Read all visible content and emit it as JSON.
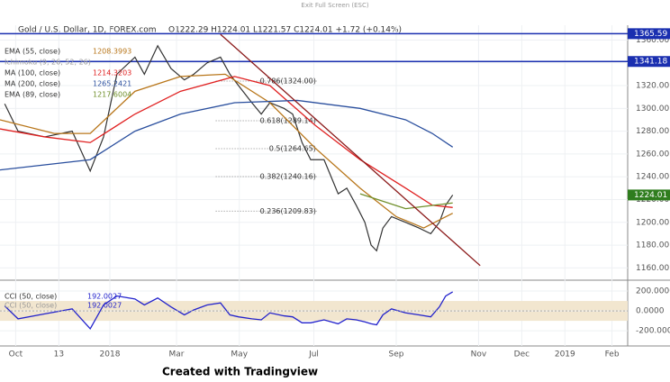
{
  "screen_hint": "Exit Full Screen (ESC)",
  "caption": "Created with Tradingview",
  "chart_data": [
    {
      "type": "line",
      "title": "Gold / U.S. Dollar, 1D, FOREX.com",
      "subtitle": "O1222.29 H1224.01 L1221.57 C1224.01 +1.72 (+0.14%)",
      "xlim": [
        0,
        80
      ],
      "xticks": [
        {
          "value": 2,
          "label": "Oct"
        },
        {
          "value": 7.5,
          "label": "13"
        },
        {
          "value": 14,
          "label": "2018"
        },
        {
          "value": 22.5,
          "label": "Mar"
        },
        {
          "value": 30.5,
          "label": "May"
        },
        {
          "value": 40,
          "label": "Jul"
        },
        {
          "value": 50.5,
          "label": "Sep"
        },
        {
          "value": 61,
          "label": "Nov"
        },
        {
          "value": 66.5,
          "label": "Dec"
        },
        {
          "value": 72,
          "label": "2019"
        },
        {
          "value": 78,
          "label": "Feb"
        }
      ],
      "ylim": [
        1150,
        1373
      ],
      "yticks": [
        {
          "value": 1160,
          "label": "1160.00"
        },
        {
          "value": 1180,
          "label": "1180.00"
        },
        {
          "value": 1200,
          "label": "1200.00"
        },
        {
          "value": 1220,
          "label": "1220.00"
        },
        {
          "value": 1240,
          "label": "1240.00"
        },
        {
          "value": 1260,
          "label": "1260.00"
        },
        {
          "value": 1280,
          "label": "1280.00"
        },
        {
          "value": 1300,
          "label": "1300.00"
        },
        {
          "value": 1320,
          "label": "1320.00"
        },
        {
          "value": 1340,
          "label": "1340.00"
        },
        {
          "value": 1360,
          "label": "1360.00"
        }
      ],
      "series": [
        {
          "color": "#333333",
          "x": [
            0.6,
            2.3,
            5.7,
            9.2,
            11.5,
            13.2,
            14.9,
            17.2,
            18.4,
            20.1,
            21.8,
            23.5,
            24.7,
            26.4,
            28.1,
            29.3,
            30.4,
            32.1,
            33.3,
            34.4,
            36.2,
            37.3,
            38.5,
            39.6,
            41.3,
            43.1,
            44.2,
            45.4,
            46.5,
            47.3,
            48.0,
            48.8,
            49.9,
            51.7,
            53.4,
            54.9,
            56.0,
            56.8,
            57.7
          ],
          "values": [
            1304,
            1280,
            1275,
            1280,
            1245,
            1275,
            1330,
            1345,
            1330,
            1355,
            1335,
            1325,
            1330,
            1340,
            1345,
            1330,
            1320,
            1305,
            1295,
            1305,
            1300,
            1295,
            1270,
            1255,
            1255,
            1225,
            1230,
            1215,
            1200,
            1180,
            1175,
            1195,
            1205,
            1200,
            1195,
            1190,
            1200,
            1215,
            1224.01
          ]
        },
        {
          "name": "EMA (55, close)",
          "color": "#b8761a",
          "legend_value": 1208.3993,
          "x": [
            0,
            6.9,
            11.5,
            17.2,
            23,
            28.7,
            34.4,
            40.2,
            45.9,
            50.5,
            54,
            57.7
          ],
          "values": [
            1290,
            1278,
            1278,
            1315,
            1328,
            1330,
            1305,
            1265,
            1230,
            1205,
            1195,
            1208
          ]
        },
        {
          "name": "Ichimoku (9, 26, 52, 26)",
          "color": "#999999",
          "x": [],
          "values": []
        },
        {
          "name": "MA (100, close)",
          "color": "#e02020",
          "legend_value": 1214.3203,
          "x": [
            0,
            5.7,
            11.5,
            17.2,
            23,
            29.9,
            34.4,
            40.2,
            45.9,
            51.7,
            55.1,
            57.7
          ],
          "values": [
            1282,
            1275,
            1270,
            1295,
            1315,
            1328,
            1320,
            1285,
            1255,
            1230,
            1215,
            1213
          ]
        },
        {
          "name": "MA (200, close)",
          "color": "#2a4f9e",
          "legend_value": 1265.2421,
          "x": [
            0,
            11.5,
            17.2,
            23,
            29.9,
            37.9,
            45.9,
            51.7,
            55.1,
            57.7
          ],
          "values": [
            1246,
            1255,
            1280,
            1295,
            1305,
            1307,
            1300,
            1290,
            1278,
            1266
          ]
        },
        {
          "name": "EMA (89, close)",
          "color": "#6f8f2a",
          "legend_value": 1217.6004,
          "x": [
            45.9,
            51.7,
            57.7
          ],
          "values": [
            1225,
            1212,
            1217
          ]
        }
      ],
      "price_lines": [
        {
          "value": 1365.59,
          "label": "1365.59",
          "color": "#1a2fb0"
        },
        {
          "value": 1341.18,
          "label": "1341.18",
          "color": "#1a2fb0"
        }
      ],
      "last_price": {
        "value": 1224.01,
        "label": "1224.01",
        "color": "#2f7d1e"
      },
      "trendline": {
        "color": "#8b1a1a",
        "x": [
          28.1,
          61.2
        ],
        "values": [
          1365,
          1162
        ]
      },
      "fib_x": [
        27.5,
        40.5
      ],
      "fib_levels": [
        {
          "value": 1324.0,
          "label": "0.786(1324.00)"
        },
        {
          "value": 1289.14,
          "label": "0.618(1289.14)"
        },
        {
          "value": 1264.65,
          "label": "0.5(1264.65)"
        },
        {
          "value": 1240.16,
          "label": "0.382(1240.16)"
        },
        {
          "value": 1209.83,
          "label": "0.236(1209.83)"
        }
      ]
    },
    {
      "type": "line",
      "ylim": [
        -335,
        300
      ],
      "yticks": [
        {
          "value": 200,
          "label": "200.0000"
        },
        {
          "value": 0,
          "label": "0.0000"
        },
        {
          "value": -200,
          "label": "-200.0000"
        }
      ],
      "band": [
        -100,
        100
      ],
      "series": [
        {
          "name": "CCI (50, close)",
          "color": "#2222cc",
          "legend_value": 192.0027,
          "x": [
            0.6,
            2.3,
            5.7,
            9.2,
            11.5,
            13.2,
            14.9,
            17.2,
            18.4,
            20.1,
            21.8,
            23.5,
            24.7,
            26.4,
            28.1,
            29.3,
            30.4,
            32.1,
            33.3,
            34.4,
            36.2,
            37.3,
            38.5,
            39.6,
            41.3,
            43.1,
            44.2,
            45.4,
            46.5,
            47.3,
            48.0,
            48.8,
            49.9,
            51.7,
            53.4,
            54.9,
            56.0,
            56.8,
            57.7
          ],
          "values": [
            50,
            -80,
            -30,
            20,
            -180,
            60,
            150,
            120,
            60,
            130,
            40,
            -40,
            10,
            60,
            80,
            -40,
            -60,
            -80,
            -90,
            -20,
            -50,
            -60,
            -120,
            -120,
            -90,
            -130,
            -80,
            -90,
            -110,
            -130,
            -140,
            -40,
            20,
            -20,
            -40,
            -60,
            40,
            150,
            192.0027
          ]
        },
        {
          "name": "CCI (50, close)",
          "color": "#2222cc",
          "legend_value": 192.0027,
          "x": [],
          "values": []
        }
      ]
    }
  ]
}
